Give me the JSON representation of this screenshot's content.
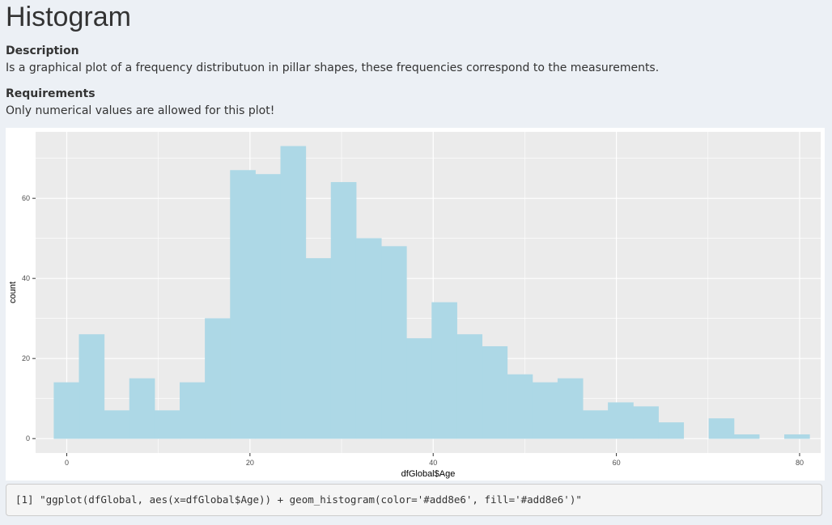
{
  "page": {
    "title": "Histogram",
    "description_heading": "Description",
    "description_text": "Is a graphical plot of a frequency distributuon in pillar shapes, these frequencies correspond to the measurements.",
    "requirements_heading": "Requirements",
    "requirements_text": "Only numerical values are allowed for this plot!"
  },
  "code_output": "[1] \"ggplot(dfGlobal, aes(x=dfGlobal$Age)) + geom_histogram(color='#add8e6', fill='#add8e6')\"",
  "colors": {
    "bar_fill": "#add8e6",
    "panel_background": "#ebebeb",
    "grid": "#ffffff"
  },
  "chart_data": {
    "type": "bar",
    "xlabel": "dfGlobal$Age",
    "ylabel": "count",
    "xlim": [
      -3.4,
      82.3
    ],
    "ylim": [
      -3.6,
      76.6
    ],
    "x_ticks": [
      0,
      20,
      40,
      60,
      80
    ],
    "y_ticks": [
      0,
      20,
      40,
      60
    ],
    "x_tick_labels": [
      "0",
      "20",
      "40",
      "60",
      "80"
    ],
    "y_tick_labels": [
      "0",
      "20",
      "40",
      "60"
    ],
    "grid": true,
    "bin_width": 2.75,
    "bin_start": -1.4,
    "values": [
      14,
      26,
      7,
      15,
      7,
      14,
      30,
      67,
      66,
      73,
      45,
      64,
      50,
      48,
      25,
      34,
      26,
      23,
      16,
      14,
      15,
      7,
      9,
      8,
      4,
      0,
      5,
      1,
      0,
      1
    ]
  }
}
